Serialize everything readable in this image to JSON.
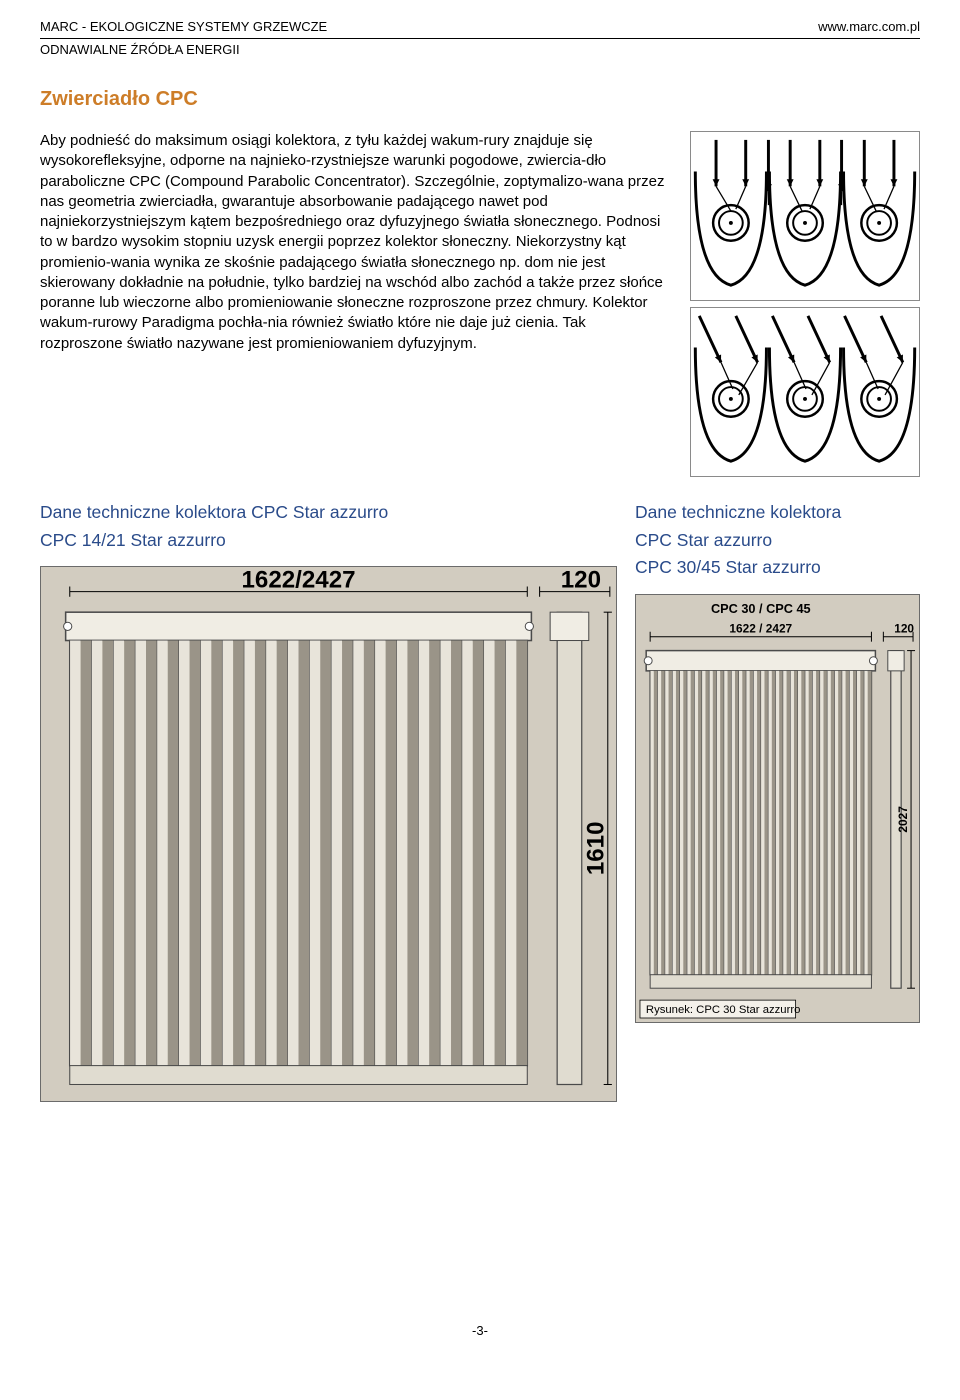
{
  "header": {
    "left": "MARC - EKOLOGICZNE SYSTEMY GRZEWCZE",
    "right": "www.marc.com.pl",
    "sub": "ODNAWIALNE ŹRÓDŁA ENERGII"
  },
  "section": {
    "title": "Zwierciadło CPC",
    "body": "Aby podnieść do maksimum osiągi kolektora, z tyłu każdej wakum-rury znajduje się wysokorefleksyjne, odporne na najnieko-rzystniejsze warunki pogodowe, zwiercia-dło paraboliczne CPC (Compound Parabolic Concentrator). Szczególnie, zoptymalizo-wana przez nas geometria zwierciadła, gwarantuje absorbowanie padającego nawet pod najniekorzystniejszym kątem bezpośredniego oraz dyfuzyjnego światła słonecznego. Podnosi to w bardzo wysokim stopniu uzysk energii poprzez kolektor słoneczny. Niekorzystny kąt promienio-wania wynika ze skośnie padającego światła słonecznego np. dom nie jest skierowany dokładnie na południe, tylko bardziej na wschód albo zachód a także przez słońce poranne lub wieczorne albo promieniowanie słoneczne rozproszone przez chmury. Kolektor wakum-rurowy Paradigma pochła-nia również światło które nie daje już cienia. Tak rozproszone światło nazywane jest promieniowaniem dyfuzyjnym."
  },
  "subsections": {
    "left_title_1": "Dane techniczne kolektora CPC Star azzurro",
    "left_title_2": "CPC 14/21 Star azzurro",
    "right_title_1": "Dane techniczne kolektora",
    "right_title_2": "CPC Star azzurro",
    "right_title_3": "CPC 30/45 Star azzurro"
  },
  "collector_left": {
    "top_dim": "1622/2427",
    "side_dim": "120",
    "height_dim": "1610",
    "tube_count": 21,
    "bg": "#d2ccc0",
    "tube_light": "#e8e4da",
    "tube_dark": "#9a9488",
    "frame": "#4a4a4a"
  },
  "collector_right": {
    "model_label": "CPC 30 / CPC 45",
    "top_dim": "1622 / 2427",
    "side_dim": "120",
    "height_dim": "2027",
    "caption": "Rysunek: CPC 30 Star azzurro",
    "tube_count": 30,
    "bg": "#d2ccc0",
    "tube_light": "#e8e4da",
    "tube_dark": "#9a9488",
    "frame": "#4a4a4a"
  },
  "cpc_diagram": {
    "tube_outer": "#ffffff",
    "tube_ring": "#000000",
    "mirror": "#000000",
    "bg": "#ffffff"
  },
  "footer": {
    "page": "-3-"
  }
}
